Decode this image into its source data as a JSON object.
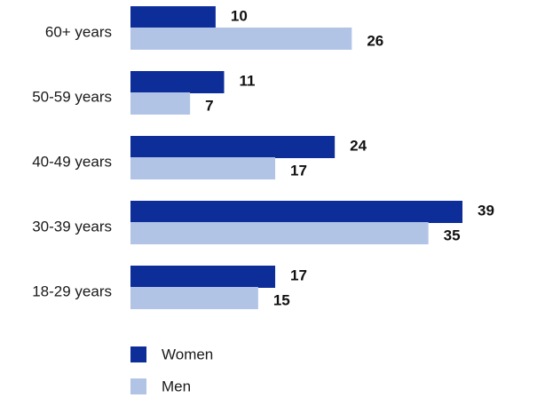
{
  "chart_data": {
    "type": "bar",
    "orientation": "horizontal",
    "categories": [
      "60+ years",
      "50-59 years",
      "40-49 years",
      "30-39 years",
      "18-29 years"
    ],
    "series": [
      {
        "name": "Women",
        "color": "#0d2d99",
        "values": [
          10,
          11,
          24,
          39,
          17
        ]
      },
      {
        "name": "Men",
        "color": "#b1c4e6",
        "values": [
          26,
          7,
          17,
          35,
          15
        ]
      }
    ],
    "title": "",
    "xlabel": "",
    "ylabel": "",
    "xlim": [
      0,
      39
    ],
    "grid": false,
    "legend": "bottom-left",
    "data_labels": true
  }
}
